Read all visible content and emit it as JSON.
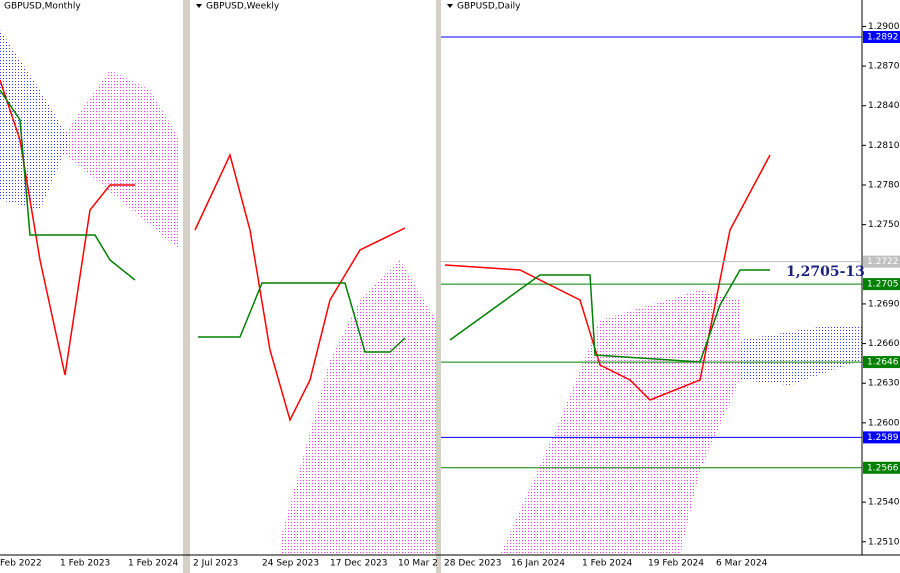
{
  "panels": [
    {
      "title": "GBPUSD,Monthly",
      "dates": [
        "Feb 2022",
        "1 Feb 2023",
        "1 Feb 2024"
      ]
    },
    {
      "title": "GBPUSD,Weekly",
      "dates": [
        "2 Jul 2023",
        "24 Sep 2023",
        "17 Dec 2023",
        "10 Mar 2"
      ]
    },
    {
      "title": "GBPUSD,Daily",
      "dates": [
        "28 Dec 2023",
        "16 Jan 2024",
        "1 Feb 2024",
        "19 Feb 2024",
        "6 Mar 2024"
      ]
    }
  ],
  "daily_axis": {
    "ylim": [
      1.25,
      1.292
    ],
    "yticks": [
      {
        "value": 1.29,
        "label": "1.2900"
      },
      {
        "value": 1.287,
        "label": "1.2870"
      },
      {
        "value": 1.284,
        "label": "1.2840"
      },
      {
        "value": 1.281,
        "label": "1.2810"
      },
      {
        "value": 1.278,
        "label": "1.2780"
      },
      {
        "value": 1.275,
        "label": "1.2750"
      },
      {
        "value": 1.269,
        "label": "1.2690"
      },
      {
        "value": 1.266,
        "label": "1.2660"
      },
      {
        "value": 1.263,
        "label": "1.2630"
      },
      {
        "value": 1.26,
        "label": "1.2600"
      },
      {
        "value": 1.254,
        "label": "1.2540"
      },
      {
        "value": 1.251,
        "label": "1.2510"
      }
    ],
    "levels": [
      {
        "value": 1.2892,
        "label": "1.2892",
        "color": "#0000ff"
      },
      {
        "value": 1.2722,
        "label": "1.2722",
        "color": "#c0c0c0"
      },
      {
        "value": 1.2705,
        "label": "1.2705",
        "color": "#008000"
      },
      {
        "value": 1.2646,
        "label": "1.2646",
        "color": "#008000"
      },
      {
        "value": 1.2589,
        "label": "1.2589",
        "color": "#0000ff"
      },
      {
        "value": 1.2566,
        "label": "1.2566",
        "color": "#008000"
      }
    ]
  },
  "annotation": "1,2705-13"
}
